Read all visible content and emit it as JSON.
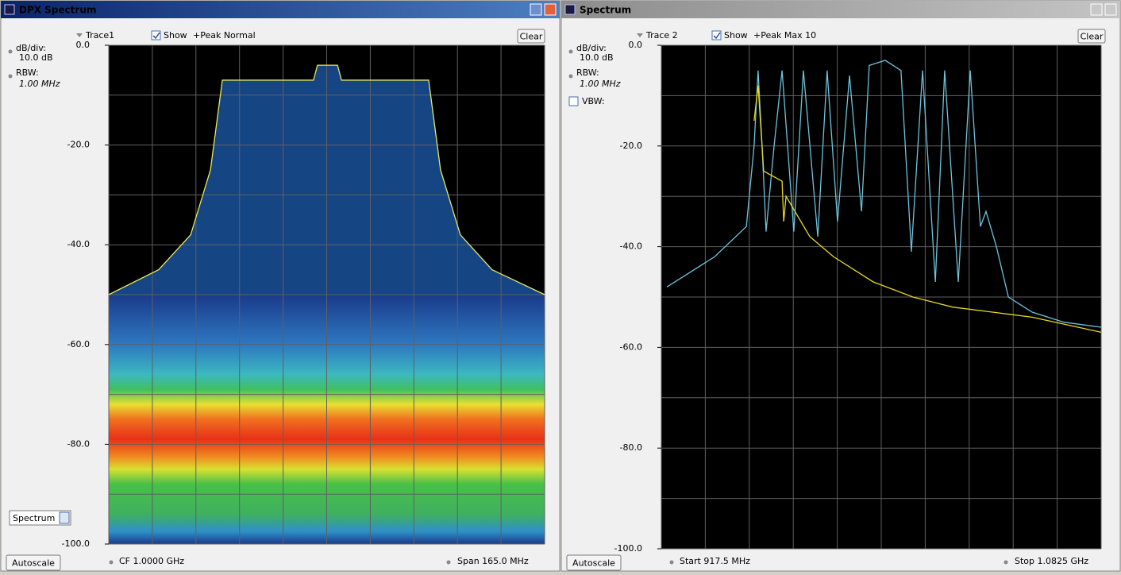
{
  "panels": [
    {
      "title": "DPX Spectrum",
      "trace": "Trace1",
      "show": "Show",
      "detector": "+Peak Normal",
      "clear": "Clear",
      "dbdiv_label": "dB/div:",
      "dbdiv": "10.0 dB",
      "rbw_label": "RBW:",
      "rbw": "1.00 MHz",
      "mode": "Spectrum",
      "autoscale": "Autoscale",
      "left_readout": "CF  1.0000 GHz",
      "right_readout": "Span  165.0 MHz",
      "ylim": [
        -100,
        0
      ],
      "xlim": [
        917.5,
        1082.5
      ],
      "yticks": [
        {
          "value": 0,
          "label": "0.0"
        },
        {
          "value": -20,
          "label": "-20.0"
        },
        {
          "value": -40,
          "label": "-40.0"
        },
        {
          "value": -60,
          "label": "-60.0"
        },
        {
          "value": -80,
          "label": "-80.0"
        },
        {
          "value": -100,
          "label": "-100.0"
        }
      ],
      "traces": [
        {
          "color": "#e8e860",
          "x": [
            917.5,
            936.4,
            948.5,
            956.0,
            960.5,
            995.0,
            996.5,
            1004.1,
            1005.6,
            1038.6,
            1043.1,
            1050.6,
            1062.6,
            1082.5
          ],
          "values": [
            -50,
            -45,
            -38,
            -25,
            -7,
            -7,
            -4,
            -4,
            -7,
            -7,
            -25,
            -38,
            -45,
            -50
          ]
        }
      ]
    },
    {
      "title": "Spectrum",
      "trace": "Trace 2",
      "show": "Show",
      "detector": "+Peak Max 10",
      "clear": "Clear",
      "dbdiv_label": "dB/div:",
      "dbdiv": "10.0 dB",
      "rbw_label": "RBW:",
      "rbw": "1.00 MHz",
      "vbw_label": "VBW:",
      "autoscale": "Autoscale",
      "left_readout": "Start  917.5 MHz",
      "right_readout": "Stop  1.0825 GHz",
      "ylim": [
        -100,
        0
      ],
      "xlim": [
        917.5,
        1082.5
      ],
      "yticks": [
        {
          "value": 0,
          "label": "0.0"
        },
        {
          "value": -20,
          "label": "-20.0"
        },
        {
          "value": -40,
          "label": "-40.0"
        },
        {
          "value": -60,
          "label": "-60.0"
        },
        {
          "value": -80,
          "label": "-80.0"
        },
        {
          "value": -100,
          "label": "-100.0"
        }
      ],
      "traces": [
        {
          "color": "#6cc4dc",
          "x": [
            919.6,
            937.5,
            949.4,
            952.3,
            953.8,
            955.3,
            956.8,
            959.8,
            962.8,
            967.2,
            970.8,
            976.2,
            979.7,
            983.6,
            988.1,
            992.6,
            995.5,
            1001.5,
            1007.4,
            1011.3,
            1015.5,
            1020.3,
            1023.8,
            1028.9,
            1033.4,
            1037.2,
            1039.3,
            1043.2,
            1047.7,
            1056.6,
            1068.5,
            1082.5
          ],
          "values": [
            -48,
            -42,
            -36,
            -20,
            -5,
            -20,
            -37,
            -20,
            -5,
            -37,
            -5,
            -38,
            -5,
            -35,
            -6,
            -33,
            -4,
            -3,
            -5,
            -41,
            -5,
            -47,
            -5,
            -47,
            -5,
            -36,
            -33,
            -40,
            -50,
            -53,
            -55,
            -56
          ]
        },
        {
          "color": "#e8d820",
          "x": [
            952.3,
            953.8,
            955.9,
            962.8,
            963.4,
            964.3,
            973.2,
            982.1,
            997.0,
            1011.9,
            1026.8,
            1041.7,
            1056.6,
            1082.5
          ],
          "values": [
            -15,
            -8,
            -25,
            -27,
            -35,
            -30,
            -38,
            -42,
            -47,
            -50,
            -52,
            -53,
            -54,
            -57
          ]
        }
      ]
    }
  ]
}
